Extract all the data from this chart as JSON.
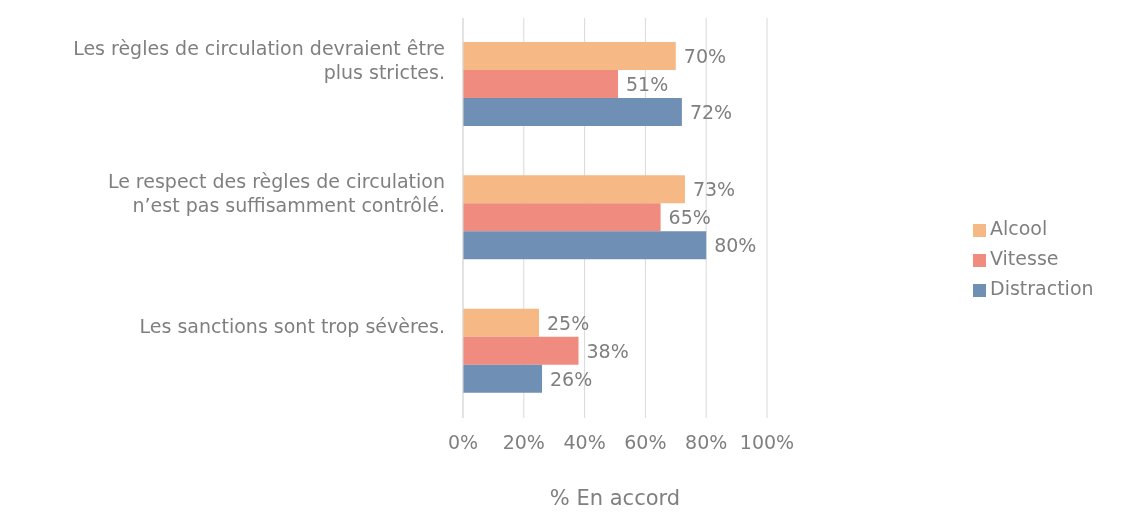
{
  "chart_data": {
    "type": "bar",
    "orientation": "horizontal",
    "xlabel": "% En accord",
    "categories": [
      "Les règles de circulation devraient être plus strictes.",
      "Le respect des règles de circulation n’est pas suffisamment contrôlé.",
      "Les sanctions sont trop sévères."
    ],
    "series": [
      {
        "name": "Alcool",
        "color": "#f6b985",
        "values": [
          70,
          73,
          25
        ],
        "value_labels": [
          "70%",
          "73%",
          "25%"
        ]
      },
      {
        "name": "Vitesse",
        "color": "#f08b7f",
        "values": [
          51,
          65,
          38
        ],
        "value_labels": [
          "51%",
          "65%",
          "38%"
        ]
      },
      {
        "name": "Distraction",
        "color": "#6f8fb4",
        "values": [
          72,
          80,
          26
        ],
        "value_labels": [
          "72%",
          "80%",
          "26%"
        ]
      }
    ],
    "xlim": [
      0,
      100
    ],
    "xticks": [
      {
        "value": 0,
        "label": "0%"
      },
      {
        "value": 20,
        "label": "20%"
      },
      {
        "value": 40,
        "label": "40%"
      },
      {
        "value": 60,
        "label": "60%"
      },
      {
        "value": 80,
        "label": "80%"
      },
      {
        "value": 100,
        "label": "100%"
      }
    ],
    "grid": "x",
    "legend": "right"
  }
}
